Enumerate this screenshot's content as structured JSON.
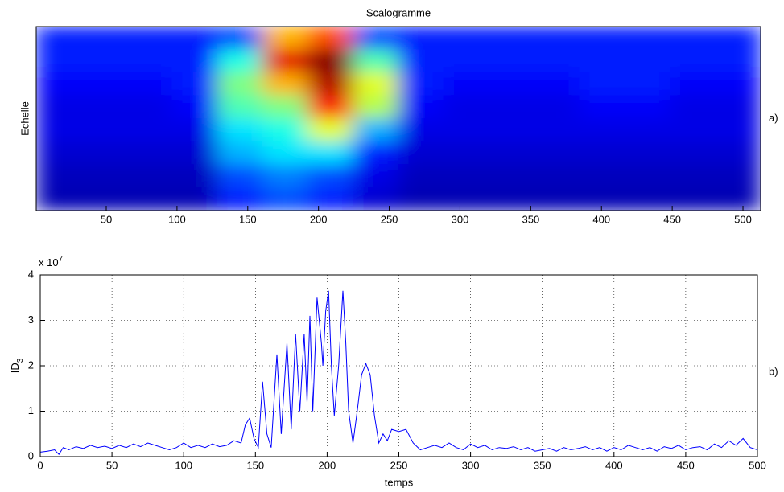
{
  "chart_data": [
    {
      "type": "heatmap",
      "title": "Scalogramme",
      "ylabel": "Echelle",
      "panel_label": "a)",
      "xlim": [
        0.5,
        512.5
      ],
      "xticks": [
        50,
        100,
        150,
        200,
        250,
        300,
        350,
        400,
        450,
        500
      ],
      "clim": [
        0,
        1
      ],
      "z": [
        [
          0.15,
          0.15,
          0.15,
          0.15,
          0.2,
          0.7,
          0.8,
          0.2,
          0.15,
          0.15,
          0.15,
          0.15,
          0.15,
          0.15,
          0.15,
          0.15
        ],
        [
          0.15,
          0.15,
          0.15,
          0.15,
          0.4,
          0.9,
          1.0,
          0.45,
          0.15,
          0.15,
          0.15,
          0.15,
          0.15,
          0.15,
          0.15,
          0.15
        ],
        [
          0.12,
          0.12,
          0.12,
          0.15,
          0.5,
          0.7,
          0.95,
          0.6,
          0.15,
          0.12,
          0.12,
          0.12,
          0.15,
          0.15,
          0.12,
          0.12
        ],
        [
          0.1,
          0.1,
          0.1,
          0.12,
          0.45,
          0.5,
          0.85,
          0.55,
          0.12,
          0.1,
          0.1,
          0.1,
          0.12,
          0.12,
          0.1,
          0.1
        ],
        [
          0.1,
          0.1,
          0.1,
          0.1,
          0.35,
          0.4,
          0.6,
          0.3,
          0.1,
          0.1,
          0.1,
          0.1,
          0.1,
          0.1,
          0.1,
          0.1
        ],
        [
          0.08,
          0.08,
          0.08,
          0.08,
          0.3,
          0.35,
          0.35,
          0.15,
          0.08,
          0.08,
          0.08,
          0.08,
          0.08,
          0.08,
          0.08,
          0.08
        ],
        [
          0.06,
          0.06,
          0.06,
          0.06,
          0.2,
          0.25,
          0.2,
          0.1,
          0.06,
          0.06,
          0.06,
          0.06,
          0.06,
          0.06,
          0.06,
          0.06
        ],
        [
          0.05,
          0.05,
          0.05,
          0.05,
          0.15,
          0.2,
          0.15,
          0.08,
          0.05,
          0.05,
          0.05,
          0.05,
          0.05,
          0.05,
          0.05,
          0.05
        ]
      ]
    },
    {
      "type": "line",
      "xlabel": "temps",
      "ylabel": "ID",
      "ylabel_subscript": "3",
      "panel_label": "b)",
      "y_scale_label": "x 10",
      "y_scale_exponent": "7",
      "grid": true,
      "color": "#0000ff",
      "xlim": [
        0,
        500
      ],
      "xticks": [
        0,
        50,
        100,
        150,
        200,
        250,
        300,
        350,
        400,
        450,
        500
      ],
      "ylim": [
        0,
        4
      ],
      "yticks": [
        0,
        1,
        2,
        3,
        4
      ],
      "x": [
        0,
        5,
        10,
        13,
        16,
        20,
        25,
        30,
        35,
        40,
        45,
        50,
        55,
        60,
        65,
        70,
        75,
        80,
        85,
        90,
        95,
        100,
        105,
        110,
        115,
        120,
        125,
        130,
        135,
        140,
        143,
        146,
        149,
        152,
        155,
        158,
        161,
        165,
        168,
        172,
        175,
        178,
        181,
        184,
        186,
        188,
        190,
        193,
        196,
        197,
        199,
        201,
        203,
        205,
        208,
        211,
        213,
        215,
        218,
        221,
        224,
        227,
        230,
        233,
        236,
        239,
        242,
        245,
        250,
        255,
        260,
        265,
        270,
        275,
        280,
        285,
        290,
        295,
        300,
        305,
        310,
        315,
        320,
        325,
        330,
        335,
        340,
        345,
        350,
        355,
        360,
        365,
        370,
        375,
        380,
        385,
        390,
        395,
        400,
        405,
        410,
        415,
        420,
        425,
        430,
        435,
        440,
        445,
        450,
        455,
        460,
        465,
        470,
        475,
        480,
        485,
        490,
        495,
        500
      ],
      "y": [
        0.1,
        0.12,
        0.15,
        0.05,
        0.2,
        0.15,
        0.22,
        0.18,
        0.25,
        0.2,
        0.23,
        0.18,
        0.25,
        0.2,
        0.28,
        0.22,
        0.3,
        0.25,
        0.2,
        0.15,
        0.2,
        0.3,
        0.2,
        0.25,
        0.2,
        0.28,
        0.22,
        0.25,
        0.35,
        0.3,
        0.7,
        0.85,
        0.4,
        0.2,
        1.65,
        0.5,
        0.2,
        2.25,
        0.5,
        2.5,
        0.6,
        2.7,
        1.0,
        2.7,
        1.2,
        3.1,
        1.0,
        3.5,
        2.5,
        2.0,
        3.2,
        3.65,
        2.0,
        0.9,
        2.0,
        3.65,
        2.5,
        1.0,
        0.3,
        1.0,
        1.8,
        2.05,
        1.8,
        0.9,
        0.3,
        0.5,
        0.35,
        0.6,
        0.55,
        0.6,
        0.3,
        0.15,
        0.2,
        0.25,
        0.2,
        0.3,
        0.2,
        0.15,
        0.28,
        0.2,
        0.25,
        0.15,
        0.2,
        0.18,
        0.22,
        0.15,
        0.2,
        0.12,
        0.15,
        0.18,
        0.12,
        0.2,
        0.15,
        0.18,
        0.22,
        0.15,
        0.2,
        0.12,
        0.2,
        0.15,
        0.25,
        0.2,
        0.15,
        0.2,
        0.12,
        0.22,
        0.18,
        0.25,
        0.15,
        0.2,
        0.22,
        0.15,
        0.28,
        0.2,
        0.35,
        0.25,
        0.4,
        0.2,
        0.15
      ]
    }
  ]
}
